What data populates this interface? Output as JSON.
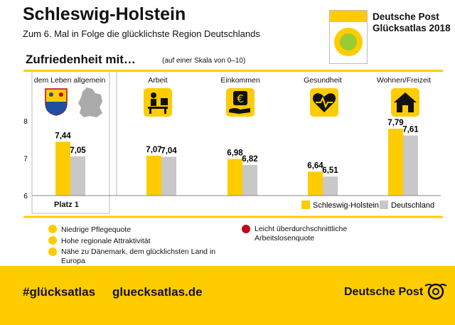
{
  "header": {
    "title": "Schleswig-Holstein",
    "subtitle": "Zum 6. Mal in Folge die glücklichste Region Deutschlands",
    "brand_line1": "Deutsche Post",
    "brand_line2": "Glücksatlas 2018"
  },
  "section": {
    "title": "Zufriedenheit mit…",
    "scale_note": "(auf einer Skala von 0–10)"
  },
  "icons": [
    "coat-of-arms-icon",
    "germany-map-icon",
    "worker-desk-icon",
    "euro-hand-icon",
    "heart-pulse-icon",
    "house-icon",
    "plus-icon",
    "minus-icon",
    "post-horn-icon"
  ],
  "chart_data": {
    "type": "bar",
    "categories": [
      "dem Leben allgemein",
      "Arbeit",
      "Einkommen",
      "Gesundheit",
      "Wohnen/Freizeit"
    ],
    "series": [
      {
        "name": "Schleswig-Holstein",
        "values": [
          7.44,
          7.07,
          6.98,
          6.64,
          7.79
        ],
        "labels": [
          "7,44",
          "7,07",
          "6,98",
          "6,64",
          "7,79"
        ],
        "color": "#ffcc00"
      },
      {
        "name": "Deutschland",
        "values": [
          7.05,
          7.04,
          6.82,
          6.51,
          7.61
        ],
        "labels": [
          "7,05",
          "7,04",
          "6,82",
          "6,51",
          "7,61"
        ],
        "color": "#c8c8c8"
      }
    ],
    "yticks": [
      "6",
      "7",
      "8"
    ],
    "ylim": [
      6,
      8
    ],
    "ranking_label": "Platz 1",
    "legend_position": "bottom-right"
  },
  "facts": {
    "positive": [
      "Niedrige Pflegequote",
      "Hohe regionale Attraktivität",
      "Nähe zu Dänemark, dem glücklichsten Land in Europa"
    ],
    "negative": [
      "Leicht überdurchschnittliche Arbeitslosenquote"
    ],
    "positive_color": "#ffcc00",
    "negative_color": "#c4001a"
  },
  "footer": {
    "hashtag": "#glücksatlas",
    "url": "gluecksatlas.de",
    "logo_text": "Deutsche Post"
  }
}
